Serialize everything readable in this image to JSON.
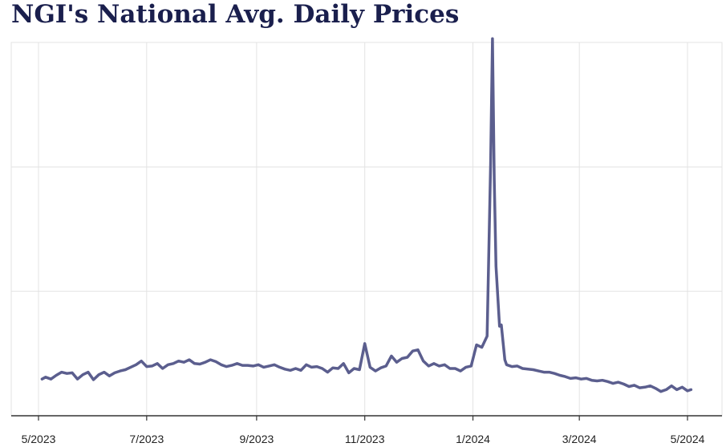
{
  "title": "NGI's National Avg. Daily Prices",
  "chart_data": {
    "type": "line",
    "title": "NGI's National Avg. Daily Prices",
    "xlabel": "",
    "ylabel": "",
    "x_tick_labels": [
      "5/2023",
      "7/2023",
      "9/2023",
      "11/2023",
      "1/2024",
      "3/2024",
      "5/2024"
    ],
    "x_tick_dates": [
      "2023-05-01",
      "2023-07-01",
      "2023-09-01",
      "2023-11-01",
      "2024-01-01",
      "2024-03-01",
      "2024-05-01"
    ],
    "xlim": [
      "2023-05-01",
      "2024-05-01"
    ],
    "ylim": [
      0,
      30
    ],
    "y_gridlines": [
      10,
      20,
      30
    ],
    "y_tick_labels_shown": false,
    "grid": true,
    "line_color": "#5b5e8e",
    "series": [
      {
        "x": [
          "2023-05-03",
          "2023-05-05",
          "2023-05-08",
          "2023-05-11",
          "2023-05-14",
          "2023-05-17",
          "2023-05-20",
          "2023-05-23",
          "2023-05-26",
          "2023-05-29",
          "2023-06-01",
          "2023-06-04",
          "2023-06-07",
          "2023-06-10",
          "2023-06-13",
          "2023-06-16",
          "2023-06-19",
          "2023-06-22",
          "2023-06-25",
          "2023-06-28",
          "2023-07-01",
          "2023-07-04",
          "2023-07-07",
          "2023-07-10",
          "2023-07-13",
          "2023-07-16",
          "2023-07-19",
          "2023-07-22",
          "2023-07-25",
          "2023-07-28",
          "2023-07-31",
          "2023-08-03",
          "2023-08-06",
          "2023-08-09",
          "2023-08-12",
          "2023-08-15",
          "2023-08-18",
          "2023-08-21",
          "2023-08-24",
          "2023-08-27",
          "2023-08-30",
          "2023-09-02",
          "2023-09-05",
          "2023-09-08",
          "2023-09-11",
          "2023-09-14",
          "2023-09-17",
          "2023-09-20",
          "2023-09-23",
          "2023-09-26",
          "2023-09-29",
          "2023-10-02",
          "2023-10-05",
          "2023-10-08",
          "2023-10-11",
          "2023-10-14",
          "2023-10-17",
          "2023-10-20",
          "2023-10-23",
          "2023-10-26",
          "2023-10-29",
          "2023-11-01",
          "2023-11-04",
          "2023-11-07",
          "2023-11-10",
          "2023-11-13",
          "2023-11-16",
          "2023-11-19",
          "2023-11-22",
          "2023-11-25",
          "2023-11-28",
          "2023-12-01",
          "2023-12-04",
          "2023-12-07",
          "2023-12-10",
          "2023-12-13",
          "2023-12-16",
          "2023-12-19",
          "2023-12-22",
          "2023-12-25",
          "2023-12-28",
          "2023-12-31",
          "2024-01-03",
          "2024-01-06",
          "2024-01-09",
          "2024-01-11",
          "2024-01-12",
          "2024-01-13",
          "2024-01-14",
          "2024-01-16",
          "2024-01-17",
          "2024-01-19",
          "2024-01-20",
          "2024-01-23",
          "2024-01-26",
          "2024-01-29",
          "2024-02-01",
          "2024-02-04",
          "2024-02-07",
          "2024-02-10",
          "2024-02-13",
          "2024-02-16",
          "2024-02-19",
          "2024-02-22",
          "2024-02-25",
          "2024-02-28",
          "2024-03-02",
          "2024-03-05",
          "2024-03-08",
          "2024-03-11",
          "2024-03-14",
          "2024-03-17",
          "2024-03-20",
          "2024-03-23",
          "2024-03-26",
          "2024-03-29",
          "2024-04-01",
          "2024-04-04",
          "2024-04-07",
          "2024-04-10",
          "2024-04-13",
          "2024-04-16",
          "2024-04-19",
          "2024-04-22",
          "2024-04-25",
          "2024-04-28",
          "2024-05-01",
          "2024-05-03"
        ],
        "y": [
          2.95,
          3.1,
          2.95,
          3.25,
          3.5,
          3.4,
          3.45,
          2.95,
          3.3,
          3.5,
          2.9,
          3.3,
          3.5,
          3.2,
          3.45,
          3.6,
          3.7,
          3.9,
          4.1,
          4.4,
          3.95,
          4.0,
          4.2,
          3.8,
          4.1,
          4.2,
          4.4,
          4.3,
          4.5,
          4.2,
          4.15,
          4.3,
          4.5,
          4.35,
          4.1,
          3.95,
          4.05,
          4.2,
          4.05,
          4.05,
          4.0,
          4.1,
          3.9,
          4.0,
          4.1,
          3.9,
          3.75,
          3.65,
          3.8,
          3.65,
          4.1,
          3.9,
          3.95,
          3.8,
          3.5,
          3.85,
          3.8,
          4.2,
          3.45,
          3.8,
          3.7,
          5.8,
          3.9,
          3.6,
          3.85,
          4.0,
          4.8,
          4.3,
          4.6,
          4.7,
          5.2,
          5.3,
          4.4,
          4.0,
          4.2,
          4.0,
          4.1,
          3.8,
          3.8,
          3.6,
          3.9,
          4.0,
          5.7,
          5.5,
          6.4,
          20.3,
          30.3,
          19.0,
          12.0,
          7.2,
          7.3,
          4.5,
          4.1,
          3.95,
          4.0,
          3.8,
          3.75,
          3.7,
          3.6,
          3.5,
          3.5,
          3.4,
          3.25,
          3.15,
          3.0,
          3.05,
          2.95,
          3.0,
          2.85,
          2.8,
          2.85,
          2.75,
          2.6,
          2.7,
          2.55,
          2.35,
          2.45,
          2.25,
          2.3,
          2.4,
          2.2,
          1.95,
          2.1,
          2.4,
          2.1,
          2.3,
          2.0,
          2.1
        ]
      }
    ]
  }
}
